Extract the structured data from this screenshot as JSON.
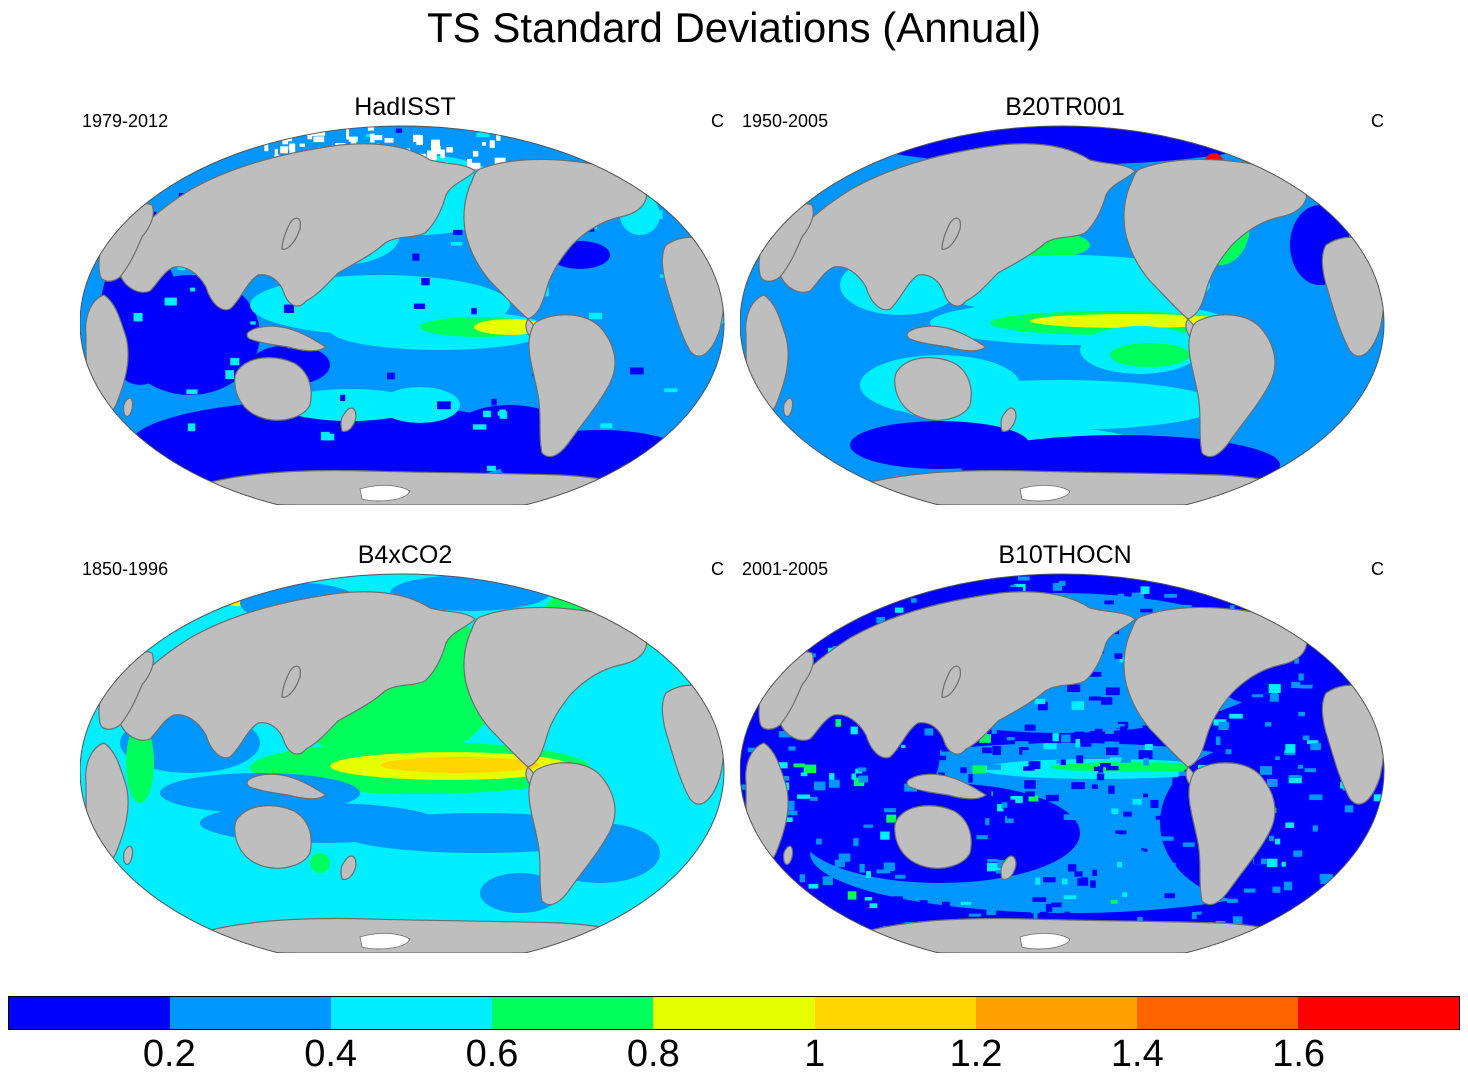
{
  "title": "TS Standard Deviations (Annual)",
  "panels": [
    {
      "title": "HadISST",
      "years": "1979-2012",
      "units": "C",
      "variant": "obs"
    },
    {
      "title": "B20TR001",
      "years": "1950-2005",
      "units": "C",
      "variant": "tr"
    },
    {
      "title": "B4xCO2",
      "years": "1850-1996",
      "units": "C",
      "variant": "co2"
    },
    {
      "title": "B10THOCN",
      "years": "2001-2005",
      "units": "C",
      "variant": "noisy"
    }
  ],
  "colorbar": {
    "colors": [
      "#0000ff",
      "#0096ff",
      "#00eeff",
      "#00ff5a",
      "#e6ff00",
      "#ffd700",
      "#ffa000",
      "#ff6400",
      "#ff0000"
    ],
    "labels": [
      "0.2",
      "0.4",
      "0.6",
      "0.8",
      "1",
      "1.2",
      "1.4",
      "1.6"
    ]
  },
  "colors": {
    "land": "#bebebe",
    "coast": "#6e6e6e",
    "ice": "#ffffff"
  }
}
